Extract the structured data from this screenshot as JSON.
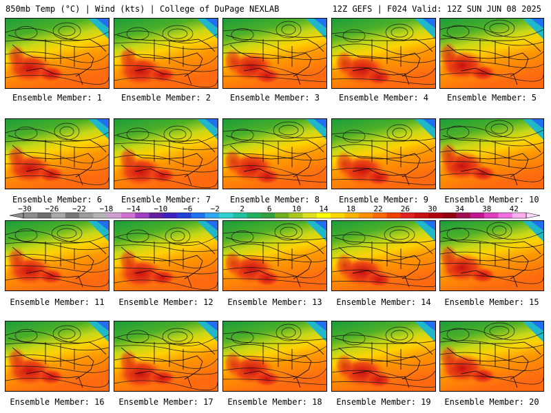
{
  "header": {
    "left": "850mb Temp (°C) | Wind (kts) | College of DuPage NEXLAB",
    "right": "12Z GEFS | F024 Valid: 12Z SUN JUN 08 2025"
  },
  "members": [
    {
      "label": "Ensemble Member: 1"
    },
    {
      "label": "Ensemble Member: 2"
    },
    {
      "label": "Ensemble Member: 3"
    },
    {
      "label": "Ensemble Member: 4"
    },
    {
      "label": "Ensemble Member: 5"
    },
    {
      "label": "Ensemble Member: 6"
    },
    {
      "label": "Ensemble Member: 7"
    },
    {
      "label": "Ensemble Member: 8"
    },
    {
      "label": "Ensemble Member: 9"
    },
    {
      "label": "Ensemble Member: 10"
    },
    {
      "label": "Ensemble Member: 11"
    },
    {
      "label": "Ensemble Member: 12"
    },
    {
      "label": "Ensemble Member: 13"
    },
    {
      "label": "Ensemble Member: 14"
    },
    {
      "label": "Ensemble Member: 15"
    },
    {
      "label": "Ensemble Member: 16"
    },
    {
      "label": "Ensemble Member: 17"
    },
    {
      "label": "Ensemble Member: 18"
    },
    {
      "label": "Ensemble Member: 19"
    },
    {
      "label": "Ensemble Member: 20"
    }
  ],
  "colorbar": {
    "tick_labels": [
      "−30",
      "−26",
      "−22",
      "−18",
      "−14",
      "−10",
      "−6",
      "−2",
      "2",
      "6",
      "10",
      "14",
      "18",
      "22",
      "26",
      "30",
      "34",
      "38",
      "42"
    ],
    "colors": [
      "#8c8c8c",
      "#6e6e6e",
      "#a8a8a8",
      "#787878",
      "#9c9c9c",
      "#b4b4b4",
      "#cfa0cf",
      "#d070d0",
      "#a040c0",
      "#6020a0",
      "#4020c0",
      "#2040d8",
      "#2070f0",
      "#30a8f0",
      "#30d0d0",
      "#20c0a0",
      "#20b060",
      "#30a040",
      "#70b020",
      "#a8c820",
      "#e0e020",
      "#ffff00",
      "#ffd800",
      "#ffb400",
      "#ff9000",
      "#ff6800",
      "#f04000",
      "#e02020",
      "#c81010",
      "#b00010",
      "#900010",
      "#a01050",
      "#c01890",
      "#e040c0",
      "#f070e0",
      "#ffb0f0"
    ]
  }
}
